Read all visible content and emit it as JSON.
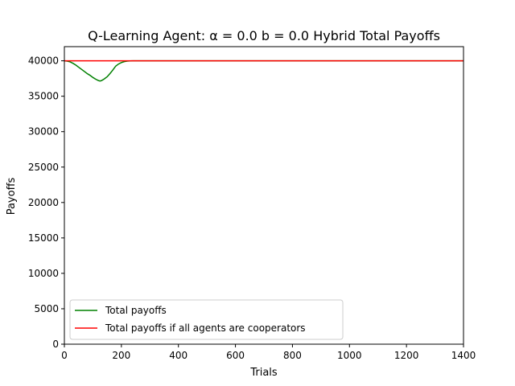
{
  "chart_data": {
    "type": "line",
    "title": "Q-Learning Agent: α = 0.0 b = 0.0 Hybrid Total Payoffs",
    "xlabel": "Trials",
    "ylabel": "Payoffs",
    "xlim": [
      0,
      1400
    ],
    "ylim": [
      0,
      42000
    ],
    "xticks": [
      0,
      200,
      400,
      600,
      800,
      1000,
      1200,
      1400
    ],
    "yticks": [
      0,
      5000,
      10000,
      15000,
      20000,
      25000,
      30000,
      35000,
      40000
    ],
    "grid": false,
    "legend_position": "lower-left",
    "series": [
      {
        "name": "Total payoffs",
        "color": "#008000",
        "x": [
          0,
          10,
          20,
          30,
          40,
          50,
          60,
          70,
          80,
          90,
          100,
          110,
          120,
          125,
          130,
          140,
          150,
          160,
          170,
          180,
          190,
          200,
          210,
          220,
          230,
          240,
          250,
          300,
          400,
          600,
          800,
          1000,
          1200,
          1400
        ],
        "y": [
          40000,
          39950,
          39850,
          39650,
          39400,
          39100,
          38800,
          38500,
          38200,
          37950,
          37650,
          37400,
          37200,
          37150,
          37200,
          37450,
          37750,
          38200,
          38700,
          39250,
          39550,
          39750,
          39880,
          39950,
          39990,
          40000,
          40000,
          40000,
          40000,
          40000,
          40000,
          40000,
          40000,
          40000
        ]
      },
      {
        "name": "Total payoffs if all agents are cooperators",
        "color": "#ff0000",
        "x": [
          0,
          1400
        ],
        "y": [
          40000,
          40000
        ]
      }
    ]
  }
}
